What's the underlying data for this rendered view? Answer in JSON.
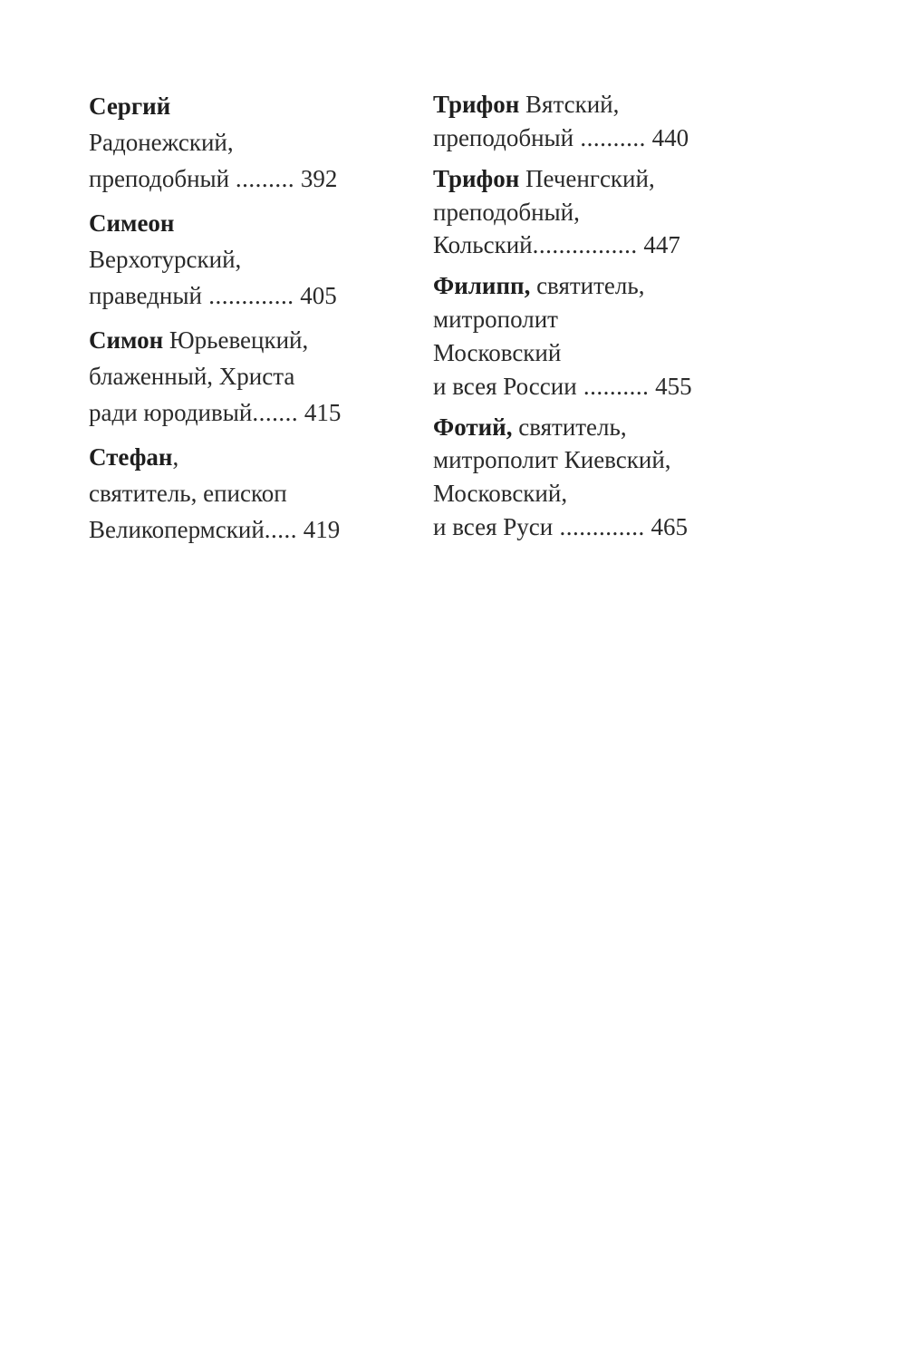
{
  "columns": [
    {
      "entries": [
        {
          "name": "Сергий",
          "first_rest": "",
          "lines": [
            "Радонежский,"
          ],
          "last": "преподобный ",
          "leader": " .........",
          "page": "392"
        },
        {
          "name": "Симеон",
          "first_rest": "",
          "lines": [
            "Верхотурский,"
          ],
          "last": "праведный",
          "leader": " .............",
          "page": "405"
        },
        {
          "name": "Симон",
          "first_rest": " Юрьевецкий,",
          "lines": [
            "блаженный, Христа"
          ],
          "last": "ради юродивый",
          "leader": ".......",
          "page": "415"
        },
        {
          "name": "Стефан",
          "first_rest": ",",
          "lines": [
            "святитель, епископ"
          ],
          "last": "Великопермский",
          "leader": ".....",
          "page": "419"
        }
      ]
    },
    {
      "entries": [
        {
          "name": "Трифон",
          "first_rest": " Вятский,",
          "lines": [],
          "last": "преподобный",
          "leader": " ..........",
          "page": "440"
        },
        {
          "name": "Трифон",
          "first_rest": " Печенгский,",
          "lines": [
            "преподобный,"
          ],
          "last": "Кольский",
          "leader": "................",
          "page": "447"
        },
        {
          "name": "Филипп,",
          "first_rest": " святитель,",
          "lines": [
            "митрополит",
            "Московский"
          ],
          "last": "и всея России",
          "leader": " ..........",
          "page": "455"
        },
        {
          "name": "Фотий,",
          "first_rest": " святитель,",
          "lines": [
            "митрополит Киевский,",
            "Московский,"
          ],
          "last": "и всея Руси",
          "leader": " .............",
          "page": "465"
        }
      ]
    }
  ]
}
